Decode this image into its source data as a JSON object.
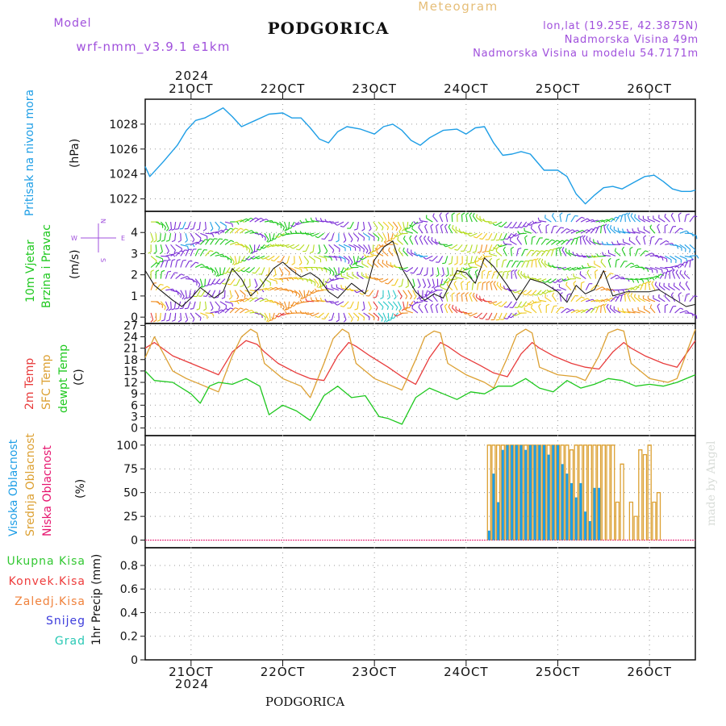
{
  "header": {
    "meteogram_label": "Meteogram",
    "city_title": "PODGORICA",
    "model_label": "Model",
    "model_name": "wrf-nmm_v3.9.1  e1km",
    "lonlat": "lon,lat (19.25E, 42.3875N)",
    "elevation": "Nadmorska Visina 49m",
    "model_elevation": "Nadmorska Visina u modelu 54.7171m"
  },
  "footer": {
    "city": "PODGORICA",
    "credit": "made by Angel"
  },
  "colors": {
    "pressure": "#1e9ee6",
    "temp2m": "#e83c3c",
    "sfc_temp": "#dca032",
    "dewpoint": "#1ec81e",
    "high_cloud": "#1e9ee6",
    "mid_cloud": "#dca032",
    "low_cloud": "#e6146e",
    "precip_total": "#32c832",
    "precip_conv": "#ee3c3c",
    "precip_frozen": "#f0823c",
    "precip_snow": "#3c3cdc",
    "precip_hail": "#28c8b4",
    "model_text": "#a050dc",
    "meteogram_title": "#e6be78"
  },
  "time_axis": {
    "year": "2024",
    "tick_labels": [
      "21OCT",
      "22OCT",
      "23OCT",
      "24OCT",
      "25OCT",
      "26OCT"
    ]
  },
  "panels": {
    "pressure": {
      "label": "Pritisak na nivou mora",
      "unit": "(hPa)"
    },
    "wind": {
      "label1": "10m Vjetar",
      "label2": "Brzina i Pravac",
      "unit": "(m/s)",
      "compass_w": "W",
      "compass_e": "E",
      "compass_n": "N",
      "compass_s": "S"
    },
    "temp": {
      "label_2m": "2m Temp",
      "label_sfc": "SFC Temp",
      "label_dew1": "dewpt Temp",
      "unit": "(C)"
    },
    "cloud": {
      "label_high": "Visoka Oblacnost",
      "label_mid": "Srednja Oblacnost",
      "label_low": "Niska Oblacnost",
      "unit": "(%)"
    },
    "precip": {
      "label_total": "Ukupna Kisa",
      "label_conv": "Konvek.Kisa",
      "label_frozen": "Zaledj.Kisa",
      "label_snow": "Snijeg",
      "label_hail": "Grad",
      "unit": "1hr Precip (mm)"
    }
  },
  "chart_data": [
    {
      "type": "line",
      "name": "pressure",
      "x_unit": "day of October 2024",
      "xlim": [
        20.5,
        26.5
      ],
      "ylim": [
        1021,
        1030
      ],
      "yticks": [
        1022,
        1024,
        1026,
        1028
      ],
      "grid": true,
      "x": [
        20.5,
        20.55,
        20.7,
        20.85,
        20.95,
        21.05,
        21.15,
        21.25,
        21.35,
        21.45,
        21.55,
        21.7,
        21.85,
        22.0,
        22.1,
        22.2,
        22.3,
        22.4,
        22.5,
        22.6,
        22.7,
        22.85,
        23.0,
        23.1,
        23.2,
        23.3,
        23.4,
        23.5,
        23.6,
        23.75,
        23.9,
        24.0,
        24.1,
        24.2,
        24.3,
        24.4,
        24.5,
        24.6,
        24.7,
        24.85,
        25.0,
        25.1,
        25.2,
        25.3,
        25.4,
        25.5,
        25.6,
        25.7,
        25.85,
        25.95,
        26.05,
        26.15,
        26.25,
        26.35,
        26.45,
        26.5
      ],
      "y": [
        1024.6,
        1023.8,
        1025.0,
        1026.3,
        1027.5,
        1028.3,
        1028.5,
        1028.9,
        1029.3,
        1028.6,
        1027.8,
        1028.3,
        1028.8,
        1028.9,
        1028.5,
        1028.5,
        1027.7,
        1026.8,
        1026.5,
        1027.4,
        1027.8,
        1027.6,
        1027.2,
        1027.8,
        1028.0,
        1027.5,
        1026.7,
        1026.3,
        1026.9,
        1027.5,
        1027.6,
        1027.2,
        1027.7,
        1027.8,
        1026.5,
        1025.5,
        1025.6,
        1025.8,
        1025.6,
        1024.3,
        1024.3,
        1023.8,
        1022.4,
        1021.6,
        1022.3,
        1022.9,
        1023.0,
        1022.8,
        1023.4,
        1023.8,
        1023.9,
        1023.4,
        1022.8,
        1022.6,
        1022.6,
        1022.7
      ]
    },
    {
      "type": "line",
      "name": "wind",
      "x_unit": "day of October 2024",
      "xlim": [
        20.5,
        26.5
      ],
      "ylim": [
        -0.3,
        5.0
      ],
      "yticks": [
        0,
        1,
        2,
        3,
        4
      ],
      "grid": true,
      "x": [
        20.5,
        20.6,
        20.8,
        20.9,
        21.0,
        21.1,
        21.25,
        21.35,
        21.45,
        21.55,
        21.65,
        21.75,
        21.9,
        22.0,
        22.1,
        22.2,
        22.3,
        22.4,
        22.5,
        22.6,
        22.75,
        22.9,
        23.0,
        23.1,
        23.2,
        23.3,
        23.45,
        23.55,
        23.65,
        23.75,
        23.9,
        24.0,
        24.1,
        24.2,
        24.3,
        24.45,
        24.55,
        24.7,
        24.85,
        25.0,
        25.1,
        25.2,
        25.3,
        25.4,
        25.5,
        25.6,
        25.75,
        25.9,
        26.0,
        26.1,
        26.25,
        26.4,
        26.5
      ],
      "y": [
        2.2,
        1.5,
        0.8,
        0.5,
        0.9,
        1.4,
        0.9,
        1.2,
        2.3,
        1.8,
        1.0,
        1.4,
        2.3,
        2.6,
        2.2,
        1.9,
        2.1,
        1.8,
        1.2,
        0.9,
        1.6,
        1.1,
        2.7,
        3.3,
        3.6,
        2.3,
        1.2,
        0.8,
        1.1,
        0.9,
        2.2,
        2.1,
        1.6,
        2.8,
        2.4,
        1.5,
        0.8,
        1.8,
        1.6,
        1.2,
        0.7,
        1.5,
        1.1,
        1.3,
        2.2,
        1.0,
        1.2,
        1.2,
        1.2,
        1.3,
        0.9,
        0.5,
        0.6
      ]
    },
    {
      "type": "line",
      "name": "temperature",
      "x_unit": "day of October 2024",
      "xlim": [
        20.5,
        26.5
      ],
      "ylim": [
        -2,
        27.5
      ],
      "yticks": [
        0,
        3,
        6,
        9,
        12,
        15,
        18,
        21,
        24,
        27
      ],
      "grid": true,
      "series": [
        {
          "name": "2m Temp",
          "x": [
            20.5,
            20.6,
            20.8,
            20.95,
            21.15,
            21.3,
            21.45,
            21.6,
            21.72,
            21.8,
            21.95,
            22.15,
            22.3,
            22.45,
            22.6,
            22.72,
            22.8,
            22.95,
            23.15,
            23.3,
            23.45,
            23.6,
            23.72,
            23.8,
            23.95,
            24.15,
            24.3,
            24.45,
            24.6,
            24.72,
            24.8,
            24.95,
            25.15,
            25.3,
            25.45,
            25.6,
            25.72,
            25.8,
            25.95,
            26.15,
            26.3,
            26.5
          ],
          "y": [
            21.0,
            22.5,
            19.0,
            17.5,
            15.5,
            14.0,
            20.0,
            23.0,
            22.0,
            20.0,
            17.0,
            14.5,
            13.0,
            12.5,
            19.0,
            22.5,
            21.5,
            19.0,
            16.0,
            13.5,
            11.5,
            18.5,
            22.5,
            21.5,
            19.0,
            16.5,
            14.5,
            13.5,
            19.5,
            22.5,
            21.0,
            19.0,
            17.0,
            16.0,
            15.5,
            20.0,
            22.5,
            21.0,
            19.0,
            17.0,
            16.0,
            23.0
          ]
        },
        {
          "name": "SFC Temp",
          "x": [
            20.5,
            20.6,
            20.8,
            20.95,
            21.15,
            21.3,
            21.45,
            21.55,
            21.65,
            21.72,
            21.8,
            22.0,
            22.2,
            22.3,
            22.45,
            22.55,
            22.65,
            22.72,
            22.8,
            23.0,
            23.2,
            23.3,
            23.45,
            23.55,
            23.65,
            23.72,
            23.8,
            24.0,
            24.2,
            24.3,
            24.45,
            24.55,
            24.65,
            24.72,
            24.8,
            25.0,
            25.2,
            25.3,
            25.45,
            25.55,
            25.65,
            25.72,
            25.8,
            26.0,
            26.2,
            26.3,
            26.5
          ],
          "y": [
            18.5,
            24.0,
            15.0,
            13.0,
            11.0,
            9.5,
            19.0,
            24.0,
            26.0,
            25.0,
            17.0,
            13.0,
            11.0,
            8.0,
            17.0,
            23.5,
            26.0,
            25.0,
            17.0,
            13.0,
            11.0,
            10.0,
            18.0,
            24.0,
            25.5,
            25.0,
            17.0,
            14.0,
            12.0,
            10.5,
            18.5,
            24.5,
            26.0,
            25.0,
            16.0,
            14.0,
            13.5,
            12.5,
            19.0,
            25.0,
            26.0,
            25.5,
            17.0,
            13.0,
            12.0,
            13.0,
            26.0
          ]
        },
        {
          "name": "dewpt Temp",
          "x": [
            20.5,
            20.6,
            20.8,
            21.0,
            21.1,
            21.2,
            21.3,
            21.45,
            21.6,
            21.75,
            21.85,
            22.0,
            22.15,
            22.3,
            22.45,
            22.6,
            22.75,
            22.9,
            23.05,
            23.15,
            23.3,
            23.45,
            23.6,
            23.75,
            23.9,
            24.05,
            24.2,
            24.35,
            24.5,
            24.65,
            24.8,
            24.95,
            25.1,
            25.25,
            25.4,
            25.55,
            25.7,
            25.85,
            26.0,
            26.15,
            26.3,
            26.5
          ],
          "y": [
            15.0,
            12.5,
            12.0,
            9.0,
            6.5,
            11.0,
            12.0,
            11.5,
            13.0,
            11.0,
            3.5,
            6.0,
            4.5,
            2.0,
            8.5,
            11.0,
            8.0,
            8.5,
            3.0,
            2.5,
            1.0,
            8.0,
            10.5,
            9.0,
            7.5,
            9.5,
            9.0,
            11.0,
            11.0,
            13.0,
            10.5,
            9.5,
            12.5,
            10.5,
            11.5,
            13.0,
            12.5,
            11.0,
            11.5,
            11.0,
            12.0,
            14.0
          ]
        }
      ]
    },
    {
      "type": "bar",
      "name": "cloud cover",
      "x_unit": "day of October 2024",
      "xlim": [
        20.5,
        26.5
      ],
      "ylim": [
        -8,
        110
      ],
      "yticks": [
        0,
        25,
        50,
        75,
        100
      ],
      "grid": true,
      "series": [
        {
          "name": "Srednja Oblacnost",
          "x": [
            24.25,
            24.3,
            24.35,
            24.4,
            24.45,
            24.5,
            24.55,
            24.6,
            24.65,
            24.7,
            24.75,
            24.8,
            24.85,
            24.9,
            24.95,
            25.0,
            25.05,
            25.1,
            25.15,
            25.2,
            25.25,
            25.3,
            25.35,
            25.4,
            25.45,
            25.5,
            25.55,
            25.6,
            25.65,
            25.7,
            25.8,
            25.85,
            25.9,
            25.95,
            26.0,
            26.05,
            26.1
          ],
          "values": [
            100,
            100,
            100,
            100,
            100,
            100,
            100,
            100,
            100,
            100,
            100,
            100,
            100,
            100,
            100,
            100,
            100,
            100,
            95,
            100,
            100,
            100,
            100,
            100,
            100,
            100,
            100,
            100,
            40,
            80,
            40,
            25,
            95,
            90,
            100,
            40,
            50
          ]
        },
        {
          "name": "Visoka Oblacnost",
          "x": [
            24.25,
            24.3,
            24.35,
            24.4,
            24.45,
            24.5,
            24.55,
            24.6,
            24.65,
            24.7,
            24.75,
            24.8,
            24.85,
            24.9,
            24.95,
            25.0,
            25.05,
            25.1,
            25.15,
            25.2,
            25.25,
            25.3,
            25.35,
            25.4,
            25.45
          ],
          "values": [
            10,
            70,
            40,
            95,
            100,
            100,
            100,
            100,
            95,
            100,
            100,
            100,
            100,
            90,
            100,
            100,
            80,
            70,
            60,
            45,
            60,
            30,
            20,
            55,
            55
          ]
        }
      ]
    },
    {
      "type": "line",
      "name": "precipitation",
      "x_unit": "day of October 2024",
      "xlim": [
        20.5,
        26.5
      ],
      "ylim": [
        0,
        0.95
      ],
      "yticks": [
        0,
        0.2,
        0.4,
        0.6,
        0.8
      ],
      "grid": true,
      "series": []
    }
  ]
}
